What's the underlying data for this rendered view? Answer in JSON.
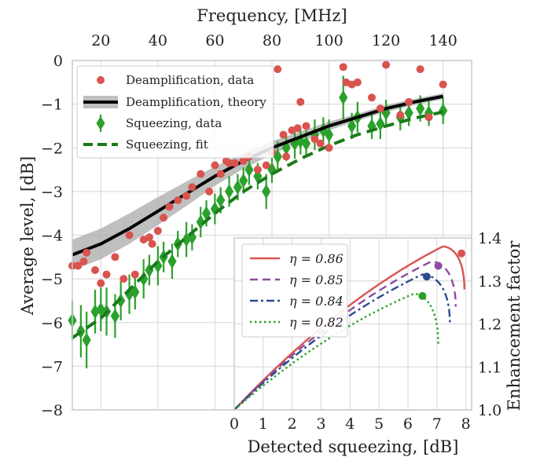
{
  "chart_data": [
    {
      "type": "scatter",
      "xlabel_top": "Frequency, [MHz]",
      "ylabel": "Average level, [dB]",
      "xlim": [
        10,
        150
      ],
      "ylim": [
        -8,
        0
      ],
      "xticks_top": [
        "20",
        "40",
        "60",
        "80",
        "100",
        "120",
        "140"
      ],
      "yticks": [
        "0",
        "−1",
        "−2",
        "−3",
        "−4",
        "−5",
        "−6",
        "−7",
        "−8"
      ],
      "grid": true,
      "legend_position": "upper-left",
      "legend": [
        "Deamplification, data",
        "Deamplification, theory",
        "Squeezing, data",
        "Squeezing, fit"
      ],
      "series": [
        {
          "name": "Deamplification, data",
          "color": "#d9534f",
          "marker": "circle",
          "x": [
            10,
            12,
            14,
            15,
            18,
            20,
            22,
            25,
            28,
            30,
            32,
            35,
            37,
            38,
            40,
            42,
            44,
            47,
            50,
            52,
            55,
            58,
            60,
            62,
            64,
            65,
            67,
            70,
            72,
            75,
            78,
            80,
            82,
            84,
            85,
            87,
            89,
            90,
            92,
            95,
            97,
            100,
            105,
            106,
            108,
            110,
            115,
            118,
            120,
            125,
            128,
            132,
            135,
            140
          ],
          "y": [
            -4.7,
            -4.7,
            -4.6,
            -4.4,
            -4.8,
            -5.1,
            -4.9,
            -4.5,
            -5.0,
            -4.0,
            -4.9,
            -4.1,
            -4.05,
            -4.2,
            -3.9,
            -3.6,
            -3.35,
            -3.2,
            -3.1,
            -2.9,
            -2.6,
            -3.0,
            -2.4,
            -2.6,
            -2.3,
            -2.35,
            -2.35,
            -2.3,
            -2.2,
            -2.5,
            -2.4,
            -2.1,
            -0.2,
            -1.7,
            -2.2,
            -1.6,
            -1.55,
            -0.95,
            -1.5,
            -1.8,
            -1.9,
            -2.0,
            -0.15,
            -0.5,
            -0.55,
            -0.5,
            -0.85,
            -1.1,
            -0.1,
            -1.25,
            -0.95,
            -0.2,
            -1.3,
            -0.55
          ]
        },
        {
          "name": "Deamplification, theory",
          "color": "#000000",
          "band_color": "#aaaaaa",
          "x": [
            10,
            20,
            30,
            40,
            50,
            60,
            70,
            80,
            90,
            100,
            110,
            120,
            130,
            140
          ],
          "y": [
            -4.45,
            -4.2,
            -3.85,
            -3.45,
            -3.05,
            -2.65,
            -2.3,
            -2.0,
            -1.75,
            -1.5,
            -1.3,
            -1.1,
            -0.95,
            -0.82
          ],
          "band": [
            0.35,
            0.35,
            0.35,
            0.32,
            0.28,
            0.22,
            0.18,
            0.15,
            0.12,
            0.1,
            0.08,
            0.08,
            0.07,
            0.07
          ]
        },
        {
          "name": "Squeezing, data",
          "color": "#2ca02c",
          "marker": "diamond",
          "x": [
            10,
            13,
            15,
            18,
            20,
            22,
            25,
            27,
            30,
            32,
            35,
            37,
            40,
            42,
            45,
            47,
            50,
            52,
            55,
            57,
            60,
            62,
            65,
            68,
            70,
            72,
            75,
            78,
            80,
            82,
            85,
            88,
            90,
            92,
            95,
            98,
            100,
            105,
            108,
            110,
            115,
            118,
            120,
            125,
            128,
            132,
            135,
            140
          ],
          "y": [
            -5.95,
            -6.2,
            -6.4,
            -5.75,
            -5.7,
            -5.75,
            -5.85,
            -5.5,
            -5.35,
            -5.3,
            -5.0,
            -4.8,
            -4.7,
            -4.5,
            -4.6,
            -4.2,
            -4.1,
            -4.05,
            -3.7,
            -3.5,
            -3.4,
            -3.2,
            -3.0,
            -2.9,
            -2.75,
            -2.5,
            -2.65,
            -3.0,
            -2.5,
            -2.2,
            -2.0,
            -1.9,
            -1.85,
            -1.9,
            -1.7,
            -1.6,
            -1.7,
            -0.85,
            -1.5,
            -1.3,
            -1.5,
            -1.45,
            -1.2,
            -1.3,
            -1.2,
            -1.1,
            -1.2,
            -1.15
          ],
          "err": [
            0.45,
            0.6,
            0.65,
            0.5,
            0.5,
            0.55,
            0.5,
            0.45,
            0.45,
            0.4,
            0.45,
            0.35,
            0.45,
            0.35,
            0.4,
            0.3,
            0.4,
            0.3,
            0.35,
            0.3,
            0.35,
            0.3,
            0.35,
            0.3,
            0.3,
            0.35,
            0.3,
            0.4,
            0.3,
            0.35,
            0.3,
            0.35,
            0.3,
            0.3,
            0.35,
            0.3,
            0.35,
            0.5,
            0.3,
            0.35,
            0.3,
            0.35,
            0.3,
            0.3,
            0.3,
            0.3,
            0.3,
            0.3
          ]
        },
        {
          "name": "Squeezing, fit",
          "color": "#1a7a1a",
          "x": [
            10,
            20,
            30,
            40,
            50,
            60,
            70,
            80,
            90,
            100,
            110,
            120,
            130,
            140
          ],
          "y": [
            -6.35,
            -5.9,
            -5.25,
            -4.6,
            -4.05,
            -3.5,
            -3.0,
            -2.6,
            -2.25,
            -1.95,
            -1.7,
            -1.5,
            -1.32,
            -1.18
          ]
        }
      ]
    },
    {
      "type": "line",
      "xlabel": "Detected squeezing, [dB]",
      "ylabel": "Enhancement factor",
      "xlim": [
        0,
        8.2
      ],
      "ylim": [
        1.0,
        1.4
      ],
      "xticks": [
        "0",
        "1",
        "2",
        "3",
        "4",
        "5",
        "6",
        "7",
        "8"
      ],
      "yticks": [
        "1.0",
        "1.1",
        "1.2",
        "1.3",
        "1.4"
      ],
      "legend_position": "upper-left",
      "series": [
        {
          "name": "η = 0.86",
          "color": "#d9534f",
          "dash": "solid",
          "eta": 0.86,
          "max_x": 7.95,
          "end_y": 1.28,
          "peak_x": 7.2,
          "peak_y": 1.38,
          "marker": [
            7.85,
            1.364
          ]
        },
        {
          "name": "η = 0.85",
          "color": "#8e4aa0",
          "dash": "dashed",
          "eta": 0.85,
          "max_x": 7.65,
          "end_y": 1.24,
          "peak_x": 6.8,
          "peak_y": 1.345,
          "marker": [
            7.05,
            1.335
          ]
        },
        {
          "name": "η = 0.84",
          "color": "#2b4b8c",
          "dash": "dashdot",
          "eta": 0.84,
          "max_x": 7.45,
          "end_y": 1.2,
          "peak_x": 6.5,
          "peak_y": 1.315,
          "marker": [
            6.65,
            1.31
          ]
        },
        {
          "name": "η = 0.82",
          "color": "#2ca02c",
          "dash": "dotted",
          "eta": 0.82,
          "max_x": 7.05,
          "end_y": 1.15,
          "peak_x": 6.2,
          "peak_y": 1.27,
          "marker": [
            6.5,
            1.265
          ]
        }
      ]
    }
  ]
}
